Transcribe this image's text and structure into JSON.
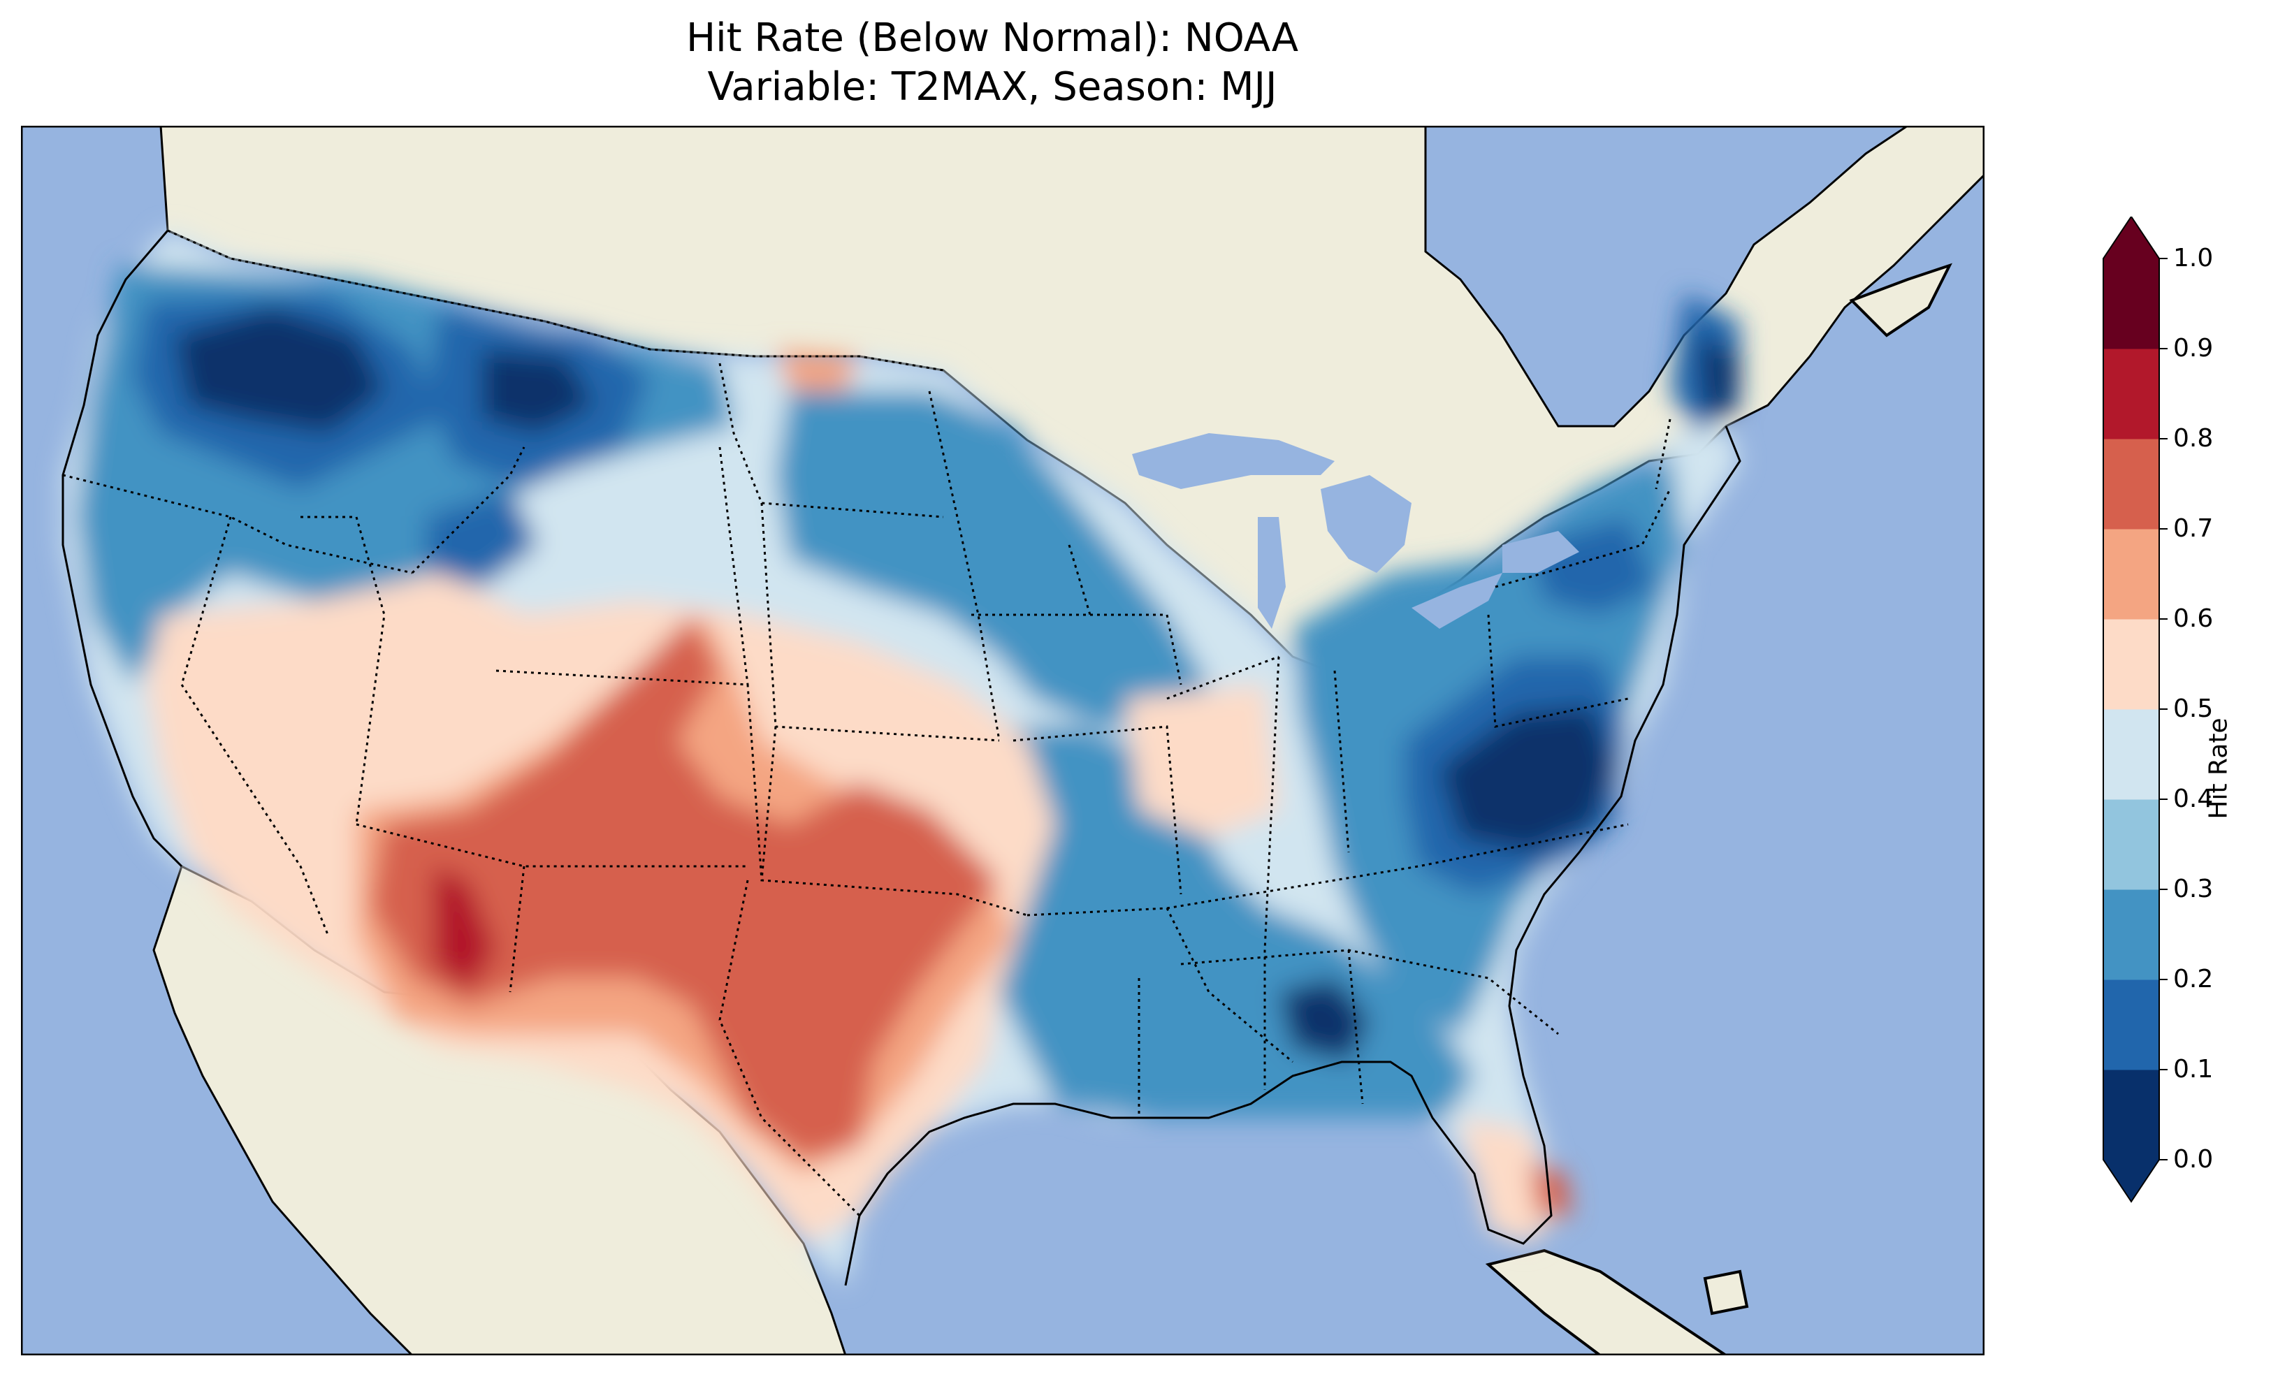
{
  "title": {
    "line1": "Hit Rate (Below Normal): NOAA",
    "line2": "Variable: T2MAX, Season: MJJ"
  },
  "colorbar": {
    "label": "Hit Rate",
    "ticks": [
      "0.0",
      "0.1",
      "0.2",
      "0.3",
      "0.4",
      "0.5",
      "0.6",
      "0.7",
      "0.8",
      "0.9",
      "1.0"
    ],
    "colors": [
      "#08306b",
      "#2166ac",
      "#4393c3",
      "#92c5de",
      "#d1e5f0",
      "#fddbc7",
      "#f4a582",
      "#d6604d",
      "#b2182b",
      "#67001f"
    ],
    "over_color": "#67001f",
    "under_color": "#08306b"
  },
  "map": {
    "ocean_color": "#96b4e0",
    "land_color": "#efeddc",
    "projection_extent_lon": [
      -125,
      -66
    ],
    "projection_extent_lat": [
      22,
      50
    ]
  }
}
